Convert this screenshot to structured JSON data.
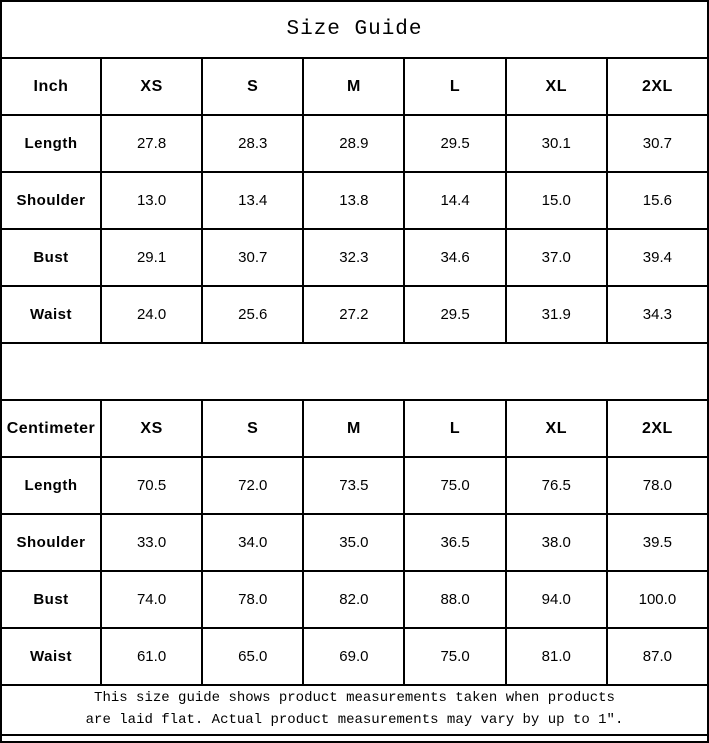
{
  "title": "Size Guide",
  "tables": [
    {
      "unit_label": "Inch",
      "sizes": [
        "XS",
        "S",
        "M",
        "L",
        "XL",
        "2XL"
      ],
      "rows": [
        {
          "label": "Length",
          "values": [
            "27.8",
            "28.3",
            "28.9",
            "29.5",
            "30.1",
            "30.7"
          ]
        },
        {
          "label": "Shoulder",
          "values": [
            "13.0",
            "13.4",
            "13.8",
            "14.4",
            "15.0",
            "15.6"
          ]
        },
        {
          "label": "Bust",
          "values": [
            "29.1",
            "30.7",
            "32.3",
            "34.6",
            "37.0",
            "39.4"
          ]
        },
        {
          "label": "Waist",
          "values": [
            "24.0",
            "25.6",
            "27.2",
            "29.5",
            "31.9",
            "34.3"
          ]
        }
      ]
    },
    {
      "unit_label": "Centimeter",
      "sizes": [
        "XS",
        "S",
        "M",
        "L",
        "XL",
        "2XL"
      ],
      "rows": [
        {
          "label": "Length",
          "values": [
            "70.5",
            "72.0",
            "73.5",
            "75.0",
            "76.5",
            "78.0"
          ]
        },
        {
          "label": "Shoulder",
          "values": [
            "33.0",
            "34.0",
            "35.0",
            "36.5",
            "38.0",
            "39.5"
          ]
        },
        {
          "label": "Bust",
          "values": [
            "74.0",
            "78.0",
            "82.0",
            "88.0",
            "94.0",
            "100.0"
          ]
        },
        {
          "label": "Waist",
          "values": [
            "61.0",
            "65.0",
            "69.0",
            "75.0",
            "81.0",
            "87.0"
          ]
        }
      ]
    }
  ],
  "footer": {
    "lines": [
      "This size guide shows product measurements taken when products",
      "are laid flat. Actual product measurements may vary by up to 1″."
    ]
  },
  "colors": {
    "border": "#000000",
    "background": "#ffffff",
    "text": "#000000"
  }
}
